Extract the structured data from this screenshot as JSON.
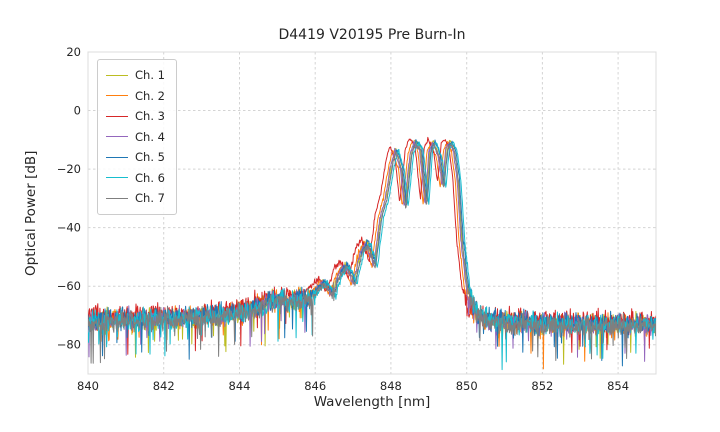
{
  "figure": {
    "title": "D4419 V20195 Pre Burn-In"
  },
  "chart_data": {
    "type": "line",
    "title": "D4419 V20195 Pre Burn-In",
    "xlabel": "Wavelength [nm]",
    "ylabel": "Optical Power [dB]",
    "xlim": [
      840,
      855
    ],
    "ylim": [
      -90,
      20
    ],
    "xticks": [
      840,
      842,
      844,
      846,
      848,
      850,
      852,
      854
    ],
    "yticks": [
      -80,
      -60,
      -40,
      -20,
      0,
      20
    ],
    "grid": true,
    "legend_position": "upper left",
    "noise_floor_db": -72,
    "peak_power_db": -11,
    "envelope": [
      [
        840.0,
        -72.0
      ],
      [
        840.5,
        -71.8
      ],
      [
        841.0,
        -71.5
      ],
      [
        841.5,
        -71.5
      ],
      [
        842.0,
        -71.0
      ],
      [
        842.5,
        -70.8
      ],
      [
        843.0,
        -70.5
      ],
      [
        843.5,
        -70.0
      ],
      [
        844.0,
        -69.0
      ],
      [
        844.4,
        -67.5
      ],
      [
        844.8,
        -65.5
      ],
      [
        845.05,
        -64.5
      ],
      [
        845.3,
        -65.5
      ],
      [
        845.55,
        -64.0
      ],
      [
        845.8,
        -65.0
      ],
      [
        846.0,
        -61.5
      ],
      [
        846.2,
        -58.5
      ],
      [
        846.45,
        -63.0
      ],
      [
        846.6,
        -56.0
      ],
      [
        846.8,
        -53.0
      ],
      [
        847.0,
        -59.0
      ],
      [
        847.2,
        -48.0
      ],
      [
        847.35,
        -45.5
      ],
      [
        847.55,
        -53.0
      ],
      [
        847.7,
        -37.0
      ],
      [
        847.85,
        -30.0
      ],
      [
        848.0,
        -18.0
      ],
      [
        848.1,
        -13.5
      ],
      [
        848.25,
        -20.0
      ],
      [
        848.35,
        -33.0
      ],
      [
        848.5,
        -15.0
      ],
      [
        848.6,
        -11.0
      ],
      [
        848.75,
        -13.0
      ],
      [
        848.9,
        -32.0
      ],
      [
        849.0,
        -14.0
      ],
      [
        849.1,
        -11.0
      ],
      [
        849.25,
        -16.0
      ],
      [
        849.35,
        -26.0
      ],
      [
        849.45,
        -12.5
      ],
      [
        849.55,
        -11.0
      ],
      [
        849.65,
        -14.0
      ],
      [
        849.75,
        -24.0
      ],
      [
        849.85,
        -45.0
      ],
      [
        850.0,
        -62.0
      ],
      [
        850.2,
        -69.0
      ],
      [
        850.5,
        -71.5
      ],
      [
        851.0,
        -72.5
      ],
      [
        852.0,
        -73.0
      ],
      [
        853.0,
        -73.0
      ],
      [
        854.0,
        -73.5
      ],
      [
        855.0,
        -73.0
      ]
    ],
    "noise": {
      "floor_amp": 3.4,
      "mid_amp": 1.3,
      "peak_amp": 0.7,
      "spike_prob": 0.04,
      "spike_max": 13,
      "samples": 1100
    },
    "series": [
      {
        "name": "Ch. 1",
        "color": "#bcbd22",
        "dx": 0.02,
        "dy": 0.5,
        "seed": 11
      },
      {
        "name": "Ch. 2",
        "color": "#ff7f0e",
        "dx": -0.05,
        "dy": 0.0,
        "seed": 22
      },
      {
        "name": "Ch. 3",
        "color": "#d62728",
        "dx": -0.12,
        "dy": 1.5,
        "seed": 33
      },
      {
        "name": "Ch. 4",
        "color": "#9467bd",
        "dx": 0.0,
        "dy": 0.0,
        "seed": 44
      },
      {
        "name": "Ch. 5",
        "color": "#1f77b4",
        "dx": 0.06,
        "dy": 0.5,
        "seed": 55
      },
      {
        "name": "Ch. 6",
        "color": "#17becf",
        "dx": 0.1,
        "dy": 0.0,
        "seed": 66
      },
      {
        "name": "Ch. 7",
        "color": "#7f7f7f",
        "dx": 0.04,
        "dy": -0.5,
        "seed": 77
      }
    ]
  }
}
